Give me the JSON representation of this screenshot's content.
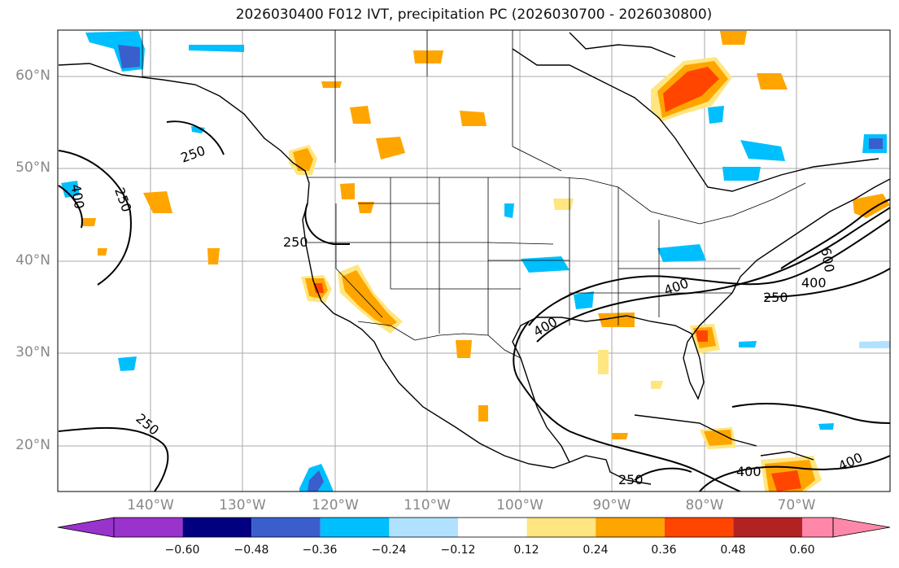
{
  "title": "2026030400 F012 IVT, precipitation PC (2026030700 - 2026030800)",
  "lat_labels": [
    "60°N",
    "50°N",
    "40°N",
    "30°N",
    "20°N"
  ],
  "lon_labels": [
    "140°W",
    "130°W",
    "120°W",
    "110°W",
    "100°W",
    "90°W",
    "80°W",
    "70°W"
  ],
  "contour_labels": [
    "250",
    "250",
    "250",
    "250",
    "400",
    "400",
    "400",
    "400",
    "600",
    "250",
    "250",
    "400",
    "400"
  ],
  "colorbar": {
    "ticks": [
      "−0.60",
      "−0.48",
      "−0.36",
      "−0.24",
      "−0.12",
      "0.12",
      "0.24",
      "0.36",
      "0.48",
      "0.60"
    ],
    "colors": [
      "#9933cc",
      "#000080",
      "#3a5fcd",
      "#00bfff",
      "#b0e2ff",
      "#ffffff",
      "#ffe680",
      "#ffa500",
      "#ff4500",
      "#b22222",
      "#ff88aa"
    ]
  }
}
